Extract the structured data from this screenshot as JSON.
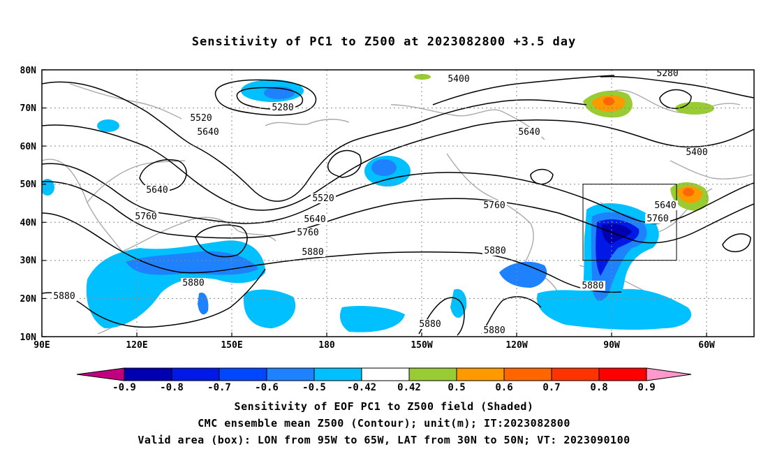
{
  "title": "Sensitivity of PC1 to Z500 at 2023082800 +3.5 day",
  "lat_labels": [
    "80N",
    "70N",
    "60N",
    "50N",
    "40N",
    "30N",
    "20N",
    "10N"
  ],
  "lon_labels": [
    "90E",
    "120E",
    "150E",
    "180",
    "150W",
    "120W",
    "90W",
    "60W"
  ],
  "colorbar": {
    "colors": [
      "#c0007f",
      "#0000b0",
      "#0019e6",
      "#0047ff",
      "#1e82ff",
      "#00c0ff",
      "#ffffff",
      "#99cc33",
      "#ff9900",
      "#ff6600",
      "#ff3300",
      "#ff0000",
      "#ff99cc"
    ],
    "labels": [
      "-0.9",
      "-0.8",
      "-0.7",
      "-0.6",
      "-0.5",
      "-0.42",
      "0.42",
      "0.5",
      "0.6",
      "0.7",
      "0.8",
      "0.9"
    ]
  },
  "contour_labels": [
    "5400",
    "5280",
    "5280",
    "5520",
    "5640",
    "5640",
    "5400",
    "5640",
    "5520",
    "5760",
    "5640",
    "5640",
    "5760",
    "5760",
    "5880",
    "5760",
    "5880",
    "5880",
    "5880",
    "5880",
    "5880",
    "5880"
  ],
  "valid_box": {
    "lon_west": "95W",
    "lon_east": "65W",
    "lat_south": "30N",
    "lat_north": "50N"
  },
  "footer": {
    "line1": "Sensitivity of EOF PC1 to Z500 field (Shaded)",
    "line2": "CMC ensemble mean Z500 (Contour); unit(m); IT:2023082800",
    "line3": "Valid area (box): LON from 95W to 65W, LAT from 30N to 50N; VT: 2023090100"
  }
}
